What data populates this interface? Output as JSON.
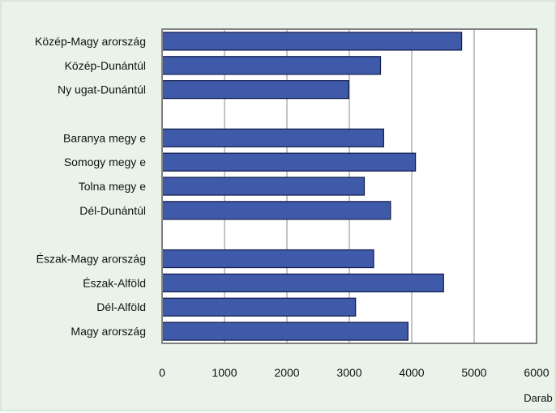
{
  "chart_data": {
    "type": "bar",
    "orientation": "horizontal",
    "categories": [
      "Közép-Magy arország",
      "Közép-Dunántúl",
      "Ny ugat-Dunántúl",
      "",
      "Baranya megy e",
      "Somogy megy e",
      "Tolna megy e",
      "Dél-Dunántúl",
      "",
      "Észak-Magy arország",
      "Észak-Alföld",
      "Dél-Alföld",
      "Magy arország"
    ],
    "values": [
      4800,
      3500,
      2990,
      null,
      3550,
      4060,
      3240,
      3660,
      null,
      3390,
      4510,
      3100,
      3940
    ],
    "xlim": [
      0,
      6000
    ],
    "xticks": [
      "0",
      "1000",
      "2000",
      "3000",
      "4000",
      "5000",
      "6000"
    ],
    "xlabel": "Darab",
    "ylabel": "",
    "title": "",
    "grid": "vertical",
    "bar_color": "#3f5aa8",
    "bar_edge_color": "#0f1a4a",
    "background_color": "#e9f3ea"
  }
}
